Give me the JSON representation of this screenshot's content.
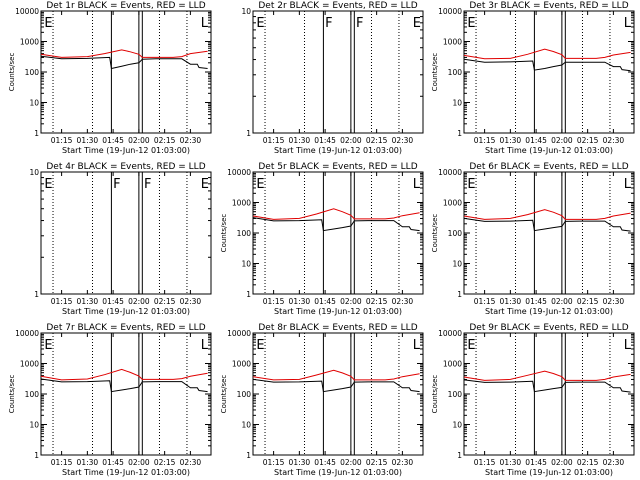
{
  "figure": {
    "colors": {
      "events": "#000000",
      "lld": "#e00000",
      "axes": "#000000"
    },
    "xlabel": "Start Time (19-Jun-12 01:03:00)",
    "ylabel": "Counts/sec"
  },
  "chart_data": [
    {
      "type": "line",
      "title": "Det 1r BLACK = Events, RED = LLD",
      "xlabel": "Start Time (19-Jun-12 01:03:00)",
      "ylabel": "Counts/sec",
      "xlim": [
        "01:03",
        "02:42"
      ],
      "ylim": [
        1,
        10000
      ],
      "yscale": "log",
      "x_ticks": [
        "01:15",
        "01:30",
        "01:45",
        "02:00",
        "02:15",
        "02:30"
      ],
      "y_ticks": [
        "1",
        "10",
        "100",
        "1000",
        "10000"
      ],
      "annotations": [
        {
          "text": "E",
          "time": "01:05"
        },
        {
          "text": "L",
          "time": "02:36"
        }
      ],
      "solid_vlines": [
        "01:44",
        "02:00",
        "02:02"
      ],
      "dotted_vlines": [
        "01:10",
        "01:33",
        "02:12",
        "02:28"
      ],
      "series": [
        {
          "name": "Events",
          "color": "#000000",
          "x": [
            "01:03",
            "01:15",
            "01:30",
            "01:43",
            "01:44",
            "01:50",
            "01:55",
            "02:00",
            "02:02",
            "02:10",
            "02:20",
            "02:25",
            "02:30",
            "02:34",
            "02:35",
            "02:40"
          ],
          "y": [
            330,
            270,
            280,
            300,
            130,
            155,
            180,
            200,
            260,
            270,
            270,
            270,
            180,
            180,
            140,
            130
          ]
        },
        {
          "name": "LLD",
          "color": "#e00000",
          "x": [
            "01:03",
            "01:15",
            "01:30",
            "01:40",
            "01:50",
            "01:55",
            "02:00",
            "02:02",
            "02:10",
            "02:20",
            "02:25",
            "02:30",
            "02:40"
          ],
          "y": [
            380,
            300,
            320,
            400,
            530,
            460,
            380,
            300,
            300,
            300,
            320,
            400,
            480
          ]
        }
      ]
    },
    {
      "type": "line",
      "title": "Det 2r BLACK = Events, RED = LLD",
      "xlabel": "Start Time (19-Jun-12 01:03:00)",
      "ylabel": "",
      "xlim": [
        "01:03",
        "02:42"
      ],
      "ylim": [
        1,
        10
      ],
      "yscale": "log",
      "x_ticks": [
        "01:15",
        "01:30",
        "01:45",
        "02:00",
        "02:15",
        "02:30"
      ],
      "y_ticks": [
        "1",
        "10"
      ],
      "annotations": [
        {
          "text": "E",
          "time": "01:05"
        },
        {
          "text": "F",
          "time": "01:45"
        },
        {
          "text": "F",
          "time": "02:03"
        },
        {
          "text": "E",
          "time": "02:36"
        }
      ],
      "solid_vlines": [
        "01:44",
        "02:00",
        "02:02"
      ],
      "dotted_vlines": [
        "01:10",
        "01:33",
        "02:12",
        "02:28"
      ],
      "series": []
    },
    {
      "type": "line",
      "title": "Det 3r BLACK = Events, RED = LLD",
      "xlabel": "Start Time (19-Jun-12 01:03:00)",
      "ylabel": "Counts/sec",
      "xlim": [
        "01:03",
        "02:42"
      ],
      "ylim": [
        1,
        10000
      ],
      "yscale": "log",
      "x_ticks": [
        "01:15",
        "01:30",
        "01:45",
        "02:00",
        "02:15",
        "02:30"
      ],
      "y_ticks": [
        "1",
        "10",
        "100",
        "1000",
        "10000"
      ],
      "annotations": [
        {
          "text": "E",
          "time": "01:05"
        },
        {
          "text": "L",
          "time": "02:36"
        }
      ],
      "solid_vlines": [
        "01:44",
        "02:00",
        "02:02"
      ],
      "dotted_vlines": [
        "01:10",
        "01:33",
        "02:12",
        "02:28"
      ],
      "series": [
        {
          "name": "Events",
          "color": "#000000",
          "x": [
            "01:03",
            "01:15",
            "01:30",
            "01:43",
            "01:44",
            "01:50",
            "01:55",
            "02:00",
            "02:02",
            "02:10",
            "02:20",
            "02:25",
            "02:30",
            "02:34",
            "02:35",
            "02:40"
          ],
          "y": [
            260,
            210,
            215,
            230,
            115,
            130,
            150,
            170,
            210,
            210,
            210,
            210,
            150,
            150,
            120,
            110
          ]
        },
        {
          "name": "LLD",
          "color": "#e00000",
          "x": [
            "01:03",
            "01:15",
            "01:30",
            "01:40",
            "01:50",
            "01:55",
            "02:00",
            "02:02",
            "02:10",
            "02:20",
            "02:25",
            "02:30",
            "02:40"
          ],
          "y": [
            350,
            270,
            280,
            380,
            560,
            470,
            370,
            280,
            280,
            280,
            300,
            360,
            440
          ]
        }
      ]
    },
    {
      "type": "line",
      "title": "Det 4r BLACK = Events, RED = LLD",
      "xlabel": "Start Time (19-Jun-12 01:03:00)",
      "ylabel": "",
      "xlim": [
        "01:03",
        "02:42"
      ],
      "ylim": [
        1,
        10
      ],
      "yscale": "log",
      "x_ticks": [
        "01:15",
        "01:30",
        "01:45",
        "02:00",
        "02:15",
        "02:30"
      ],
      "y_ticks": [
        "1",
        "10"
      ],
      "annotations": [
        {
          "text": "E",
          "time": "01:05"
        },
        {
          "text": "F",
          "time": "01:45"
        },
        {
          "text": "F",
          "time": "02:03"
        },
        {
          "text": "E",
          "time": "02:36"
        }
      ],
      "solid_vlines": [
        "01:44",
        "02:00",
        "02:02"
      ],
      "dotted_vlines": [
        "01:10",
        "01:33",
        "02:12",
        "02:28"
      ],
      "series": []
    },
    {
      "type": "line",
      "title": "Det 5r BLACK = Events, RED = LLD",
      "xlabel": "Start Time (19-Jun-12 01:03:00)",
      "ylabel": "Counts/sec",
      "xlim": [
        "01:03",
        "02:42"
      ],
      "ylim": [
        1,
        10000
      ],
      "yscale": "log",
      "x_ticks": [
        "01:15",
        "01:30",
        "01:45",
        "02:00",
        "02:15",
        "02:30"
      ],
      "y_ticks": [
        "1",
        "10",
        "100",
        "1000",
        "10000"
      ],
      "annotations": [
        {
          "text": "E",
          "time": "01:05"
        },
        {
          "text": "L",
          "time": "02:36"
        }
      ],
      "solid_vlines": [
        "01:44",
        "02:00",
        "02:02"
      ],
      "dotted_vlines": [
        "01:10",
        "01:33",
        "02:12",
        "02:28"
      ],
      "series": [
        {
          "name": "Events",
          "color": "#000000",
          "x": [
            "01:03",
            "01:15",
            "01:30",
            "01:43",
            "01:44",
            "01:50",
            "01:55",
            "02:00",
            "02:02",
            "02:10",
            "02:20",
            "02:25",
            "02:30",
            "02:34",
            "02:35",
            "02:40"
          ],
          "y": [
            320,
            250,
            255,
            270,
            120,
            135,
            150,
            170,
            250,
            255,
            255,
            255,
            160,
            160,
            130,
            120
          ]
        },
        {
          "name": "LLD",
          "color": "#e00000",
          "x": [
            "01:03",
            "01:15",
            "01:30",
            "01:40",
            "01:50",
            "01:55",
            "02:00",
            "02:02",
            "02:10",
            "02:20",
            "02:25",
            "02:30",
            "02:40"
          ],
          "y": [
            360,
            280,
            300,
            420,
            620,
            500,
            380,
            290,
            290,
            290,
            310,
            370,
            460
          ]
        }
      ]
    },
    {
      "type": "line",
      "title": "Det 6r BLACK = Events, RED = LLD",
      "xlabel": "Start Time (19-Jun-12 01:03:00)",
      "ylabel": "Counts/sec",
      "xlim": [
        "01:03",
        "02:42"
      ],
      "ylim": [
        1,
        10000
      ],
      "yscale": "log",
      "x_ticks": [
        "01:15",
        "01:30",
        "01:45",
        "02:00",
        "02:15",
        "02:30"
      ],
      "y_ticks": [
        "1",
        "10",
        "100",
        "1000",
        "10000"
      ],
      "annotations": [
        {
          "text": "E",
          "time": "01:05"
        },
        {
          "text": "L",
          "time": "02:36"
        }
      ],
      "solid_vlines": [
        "01:44",
        "02:00",
        "02:02"
      ],
      "dotted_vlines": [
        "01:10",
        "01:33",
        "02:12",
        "02:28"
      ],
      "series": [
        {
          "name": "Events",
          "color": "#000000",
          "x": [
            "01:03",
            "01:15",
            "01:30",
            "01:43",
            "01:44",
            "01:50",
            "01:55",
            "02:00",
            "02:02",
            "02:10",
            "02:20",
            "02:25",
            "02:30",
            "02:34",
            "02:35",
            "02:40"
          ],
          "y": [
            300,
            240,
            245,
            260,
            120,
            135,
            150,
            165,
            240,
            245,
            245,
            245,
            160,
            160,
            125,
            115
          ]
        },
        {
          "name": "LLD",
          "color": "#e00000",
          "x": [
            "01:03",
            "01:15",
            "01:30",
            "01:40",
            "01:50",
            "01:55",
            "02:00",
            "02:02",
            "02:10",
            "02:20",
            "02:25",
            "02:30",
            "02:40"
          ],
          "y": [
            360,
            280,
            300,
            400,
            580,
            480,
            370,
            280,
            280,
            280,
            300,
            360,
            450
          ]
        }
      ]
    },
    {
      "type": "line",
      "title": "Det 7r BLACK = Events, RED = LLD",
      "xlabel": "Start Time (19-Jun-12 01:03:00)",
      "ylabel": "Counts/sec",
      "xlim": [
        "01:03",
        "02:42"
      ],
      "ylim": [
        1,
        10000
      ],
      "yscale": "log",
      "x_ticks": [
        "01:15",
        "01:30",
        "01:45",
        "02:00",
        "02:15",
        "02:30"
      ],
      "y_ticks": [
        "1",
        "10",
        "100",
        "1000",
        "10000"
      ],
      "annotations": [
        {
          "text": "E",
          "time": "01:05"
        },
        {
          "text": "L",
          "time": "02:36"
        }
      ],
      "solid_vlines": [
        "01:44",
        "02:00",
        "02:02"
      ],
      "dotted_vlines": [
        "01:10",
        "01:33",
        "02:12",
        "02:28"
      ],
      "series": [
        {
          "name": "Events",
          "color": "#000000",
          "x": [
            "01:03",
            "01:15",
            "01:30",
            "01:43",
            "01:44",
            "01:50",
            "01:55",
            "02:00",
            "02:02",
            "02:10",
            "02:20",
            "02:25",
            "02:30",
            "02:34",
            "02:35",
            "02:40"
          ],
          "y": [
            310,
            250,
            255,
            270,
            120,
            135,
            150,
            170,
            250,
            255,
            255,
            255,
            160,
            160,
            130,
            120
          ]
        },
        {
          "name": "LLD",
          "color": "#e00000",
          "x": [
            "01:03",
            "01:15",
            "01:30",
            "01:40",
            "01:50",
            "01:55",
            "02:00",
            "02:02",
            "02:10",
            "02:20",
            "02:25",
            "02:30",
            "02:40"
          ],
          "y": [
            380,
            290,
            310,
            430,
            640,
            510,
            390,
            300,
            300,
            300,
            320,
            380,
            480
          ]
        }
      ]
    },
    {
      "type": "line",
      "title": "Det 8r BLACK = Events, RED = LLD",
      "xlabel": "Start Time (19-Jun-12 01:03:00)",
      "ylabel": "Counts/sec",
      "xlim": [
        "01:03",
        "02:42"
      ],
      "ylim": [
        1,
        10000
      ],
      "yscale": "log",
      "x_ticks": [
        "01:15",
        "01:30",
        "01:45",
        "02:00",
        "02:15",
        "02:30"
      ],
      "y_ticks": [
        "1",
        "10",
        "100",
        "1000",
        "10000"
      ],
      "annotations": [
        {
          "text": "E",
          "time": "01:05"
        },
        {
          "text": "L",
          "time": "02:36"
        }
      ],
      "solid_vlines": [
        "01:44",
        "02:00",
        "02:02"
      ],
      "dotted_vlines": [
        "01:10",
        "01:33",
        "02:12",
        "02:28"
      ],
      "series": [
        {
          "name": "Events",
          "color": "#000000",
          "x": [
            "01:03",
            "01:15",
            "01:30",
            "01:43",
            "01:44",
            "01:50",
            "01:55",
            "02:00",
            "02:02",
            "02:10",
            "02:20",
            "02:25",
            "02:30",
            "02:34",
            "02:35",
            "02:40"
          ],
          "y": [
            300,
            245,
            250,
            265,
            120,
            135,
            150,
            170,
            245,
            250,
            250,
            250,
            160,
            160,
            130,
            120
          ]
        },
        {
          "name": "LLD",
          "color": "#e00000",
          "x": [
            "01:03",
            "01:15",
            "01:30",
            "01:40",
            "01:50",
            "01:55",
            "02:00",
            "02:02",
            "02:10",
            "02:20",
            "02:25",
            "02:30",
            "02:40"
          ],
          "y": [
            370,
            290,
            300,
            420,
            600,
            490,
            380,
            290,
            290,
            290,
            310,
            370,
            460
          ]
        }
      ]
    },
    {
      "type": "line",
      "title": "Det 9r BLACK = Events, RED = LLD",
      "xlabel": "Start Time (19-Jun-12 01:03:00)",
      "ylabel": "Counts/sec",
      "xlim": [
        "01:03",
        "02:42"
      ],
      "ylim": [
        1,
        10000
      ],
      "yscale": "log",
      "x_ticks": [
        "01:15",
        "01:30",
        "01:45",
        "02:00",
        "02:15",
        "02:30"
      ],
      "y_ticks": [
        "1",
        "10",
        "100",
        "1000",
        "10000"
      ],
      "annotations": [
        {
          "text": "E",
          "time": "01:05"
        },
        {
          "text": "L",
          "time": "02:36"
        }
      ],
      "solid_vlines": [
        "01:44",
        "02:00",
        "02:02"
      ],
      "dotted_vlines": [
        "01:10",
        "01:33",
        "02:12",
        "02:28"
      ],
      "series": [
        {
          "name": "Events",
          "color": "#000000",
          "x": [
            "01:03",
            "01:15",
            "01:30",
            "01:43",
            "01:44",
            "01:50",
            "01:55",
            "02:00",
            "02:02",
            "02:10",
            "02:20",
            "02:25",
            "02:30",
            "02:34",
            "02:35",
            "02:40"
          ],
          "y": [
            290,
            240,
            245,
            260,
            120,
            135,
            150,
            165,
            240,
            245,
            245,
            245,
            160,
            160,
            125,
            115
          ]
        },
        {
          "name": "LLD",
          "color": "#e00000",
          "x": [
            "01:03",
            "01:15",
            "01:30",
            "01:40",
            "01:50",
            "01:55",
            "02:00",
            "02:02",
            "02:10",
            "02:20",
            "02:25",
            "02:30",
            "02:40"
          ],
          "y": [
            360,
            280,
            300,
            410,
            560,
            470,
            370,
            280,
            280,
            280,
            300,
            360,
            440
          ]
        }
      ]
    }
  ]
}
